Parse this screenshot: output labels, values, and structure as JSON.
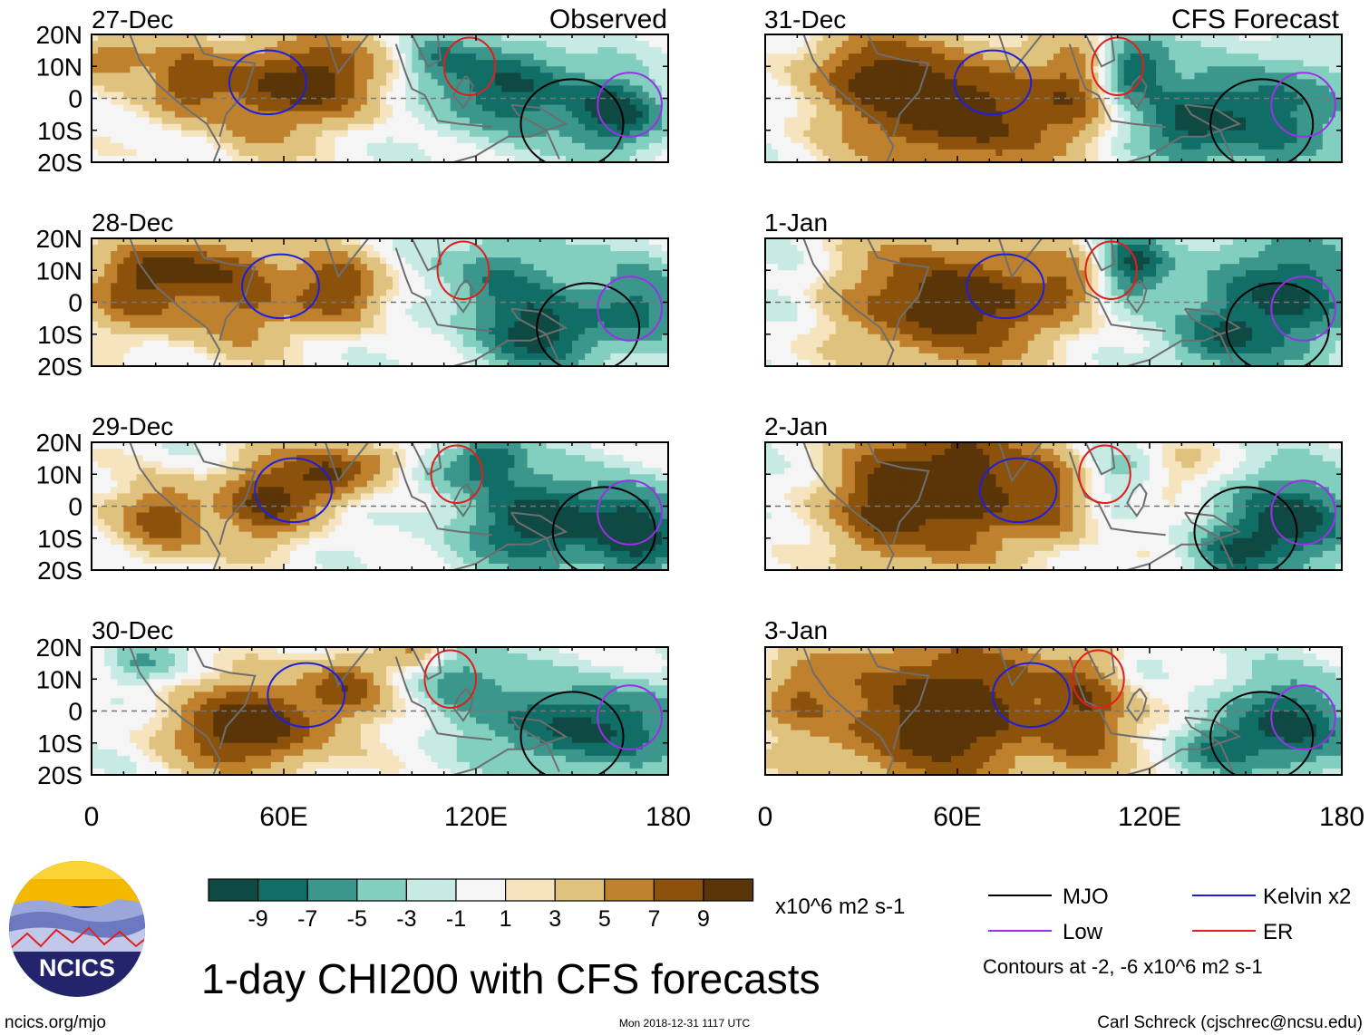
{
  "chart_data": {
    "type": "heatmap",
    "title": "1-day CHI200 with CFS forecasts",
    "columns": [
      {
        "header": "Observed",
        "dates": [
          "27-Dec",
          "28-Dec",
          "29-Dec",
          "30-Dec"
        ]
      },
      {
        "header": "CFS Forecast",
        "dates": [
          "31-Dec",
          "1-Jan",
          "2-Jan",
          "3-Jan"
        ]
      }
    ],
    "x_ticks": [
      {
        "value": 0,
        "label": "0"
      },
      {
        "value": 60,
        "label": "60E"
      },
      {
        "value": 120,
        "label": "120E"
      },
      {
        "value": 180,
        "label": "180"
      }
    ],
    "y_ticks": [
      {
        "value": 20,
        "label": "20N"
      },
      {
        "value": 10,
        "label": "10N"
      },
      {
        "value": 0,
        "label": "0"
      },
      {
        "value": -10,
        "label": "10S"
      },
      {
        "value": -20,
        "label": "20S"
      }
    ],
    "xlim": [
      0,
      180
    ],
    "ylim": [
      -20,
      20
    ],
    "colorbar": {
      "units": "x10^6 m2 s-1",
      "tick_labels": [
        "-9",
        "-7",
        "-5",
        "-3",
        "-1",
        "1",
        "3",
        "5",
        "7",
        "9"
      ],
      "colors": [
        "#0e4a43",
        "#116e66",
        "#3b968c",
        "#82cfc0",
        "#c7eae4",
        "#f5f5f5",
        "#f5e4be",
        "#dfc27d",
        "#bf812d",
        "#8c510a",
        "#5a3508"
      ]
    },
    "legend": [
      {
        "name": "MJO",
        "color": "#000000"
      },
      {
        "name": "Kelvin x2",
        "color": "#1f1fdd"
      },
      {
        "name": "Low",
        "color": "#9b30e8"
      },
      {
        "name": "ER",
        "color": "#e01e1e"
      }
    ],
    "contour_note": "Contours at -2, -6 x10^6 m2 s-1",
    "panels": [
      {
        "date": "27-Dec",
        "blobs": [
          [
            5,
            12,
            12,
            7,
            6,
            6
          ],
          [
            30,
            5,
            12,
            12,
            7,
            5
          ],
          [
            72,
            6,
            20,
            14,
            8,
            8
          ],
          [
            50,
            0,
            15,
            20,
            5,
            4
          ],
          [
            130,
            3,
            20,
            15,
            -9,
            -8
          ],
          [
            108,
            12,
            10,
            8,
            -4,
            -3
          ],
          [
            165,
            -5,
            15,
            12,
            -9,
            -5
          ]
        ]
      },
      {
        "date": "28-Dec",
        "blobs": [
          [
            15,
            4,
            16,
            14,
            7,
            7
          ],
          [
            45,
            0,
            18,
            16,
            6,
            5
          ],
          [
            78,
            4,
            14,
            12,
            8,
            7
          ],
          [
            35,
            12,
            20,
            8,
            5,
            5
          ],
          [
            128,
            8,
            18,
            14,
            -6,
            -5
          ],
          [
            140,
            -10,
            20,
            12,
            -8,
            -6
          ],
          [
            172,
            0,
            15,
            15,
            -7,
            -5
          ]
        ]
      },
      {
        "date": "29-Dec",
        "blobs": [
          [
            22,
            -4,
            14,
            12,
            8,
            6
          ],
          [
            55,
            2,
            15,
            14,
            8,
            5
          ],
          [
            75,
            10,
            12,
            10,
            7,
            6
          ],
          [
            90,
            14,
            10,
            6,
            4,
            4
          ],
          [
            112,
            12,
            10,
            8,
            -3,
            -3
          ],
          [
            125,
            15,
            10,
            8,
            -7,
            -5
          ],
          [
            140,
            -5,
            25,
            15,
            -9,
            -9
          ],
          [
            170,
            -8,
            14,
            14,
            -9,
            -5
          ]
        ]
      },
      {
        "date": "30-Dec",
        "blobs": [
          [
            50,
            -5,
            25,
            14,
            10,
            9
          ],
          [
            80,
            8,
            12,
            10,
            7,
            6
          ],
          [
            15,
            15,
            10,
            6,
            -4,
            -3
          ],
          [
            115,
            10,
            14,
            12,
            -5,
            -5
          ],
          [
            155,
            -5,
            30,
            14,
            -9,
            -10
          ],
          [
            100,
            18,
            10,
            5,
            4,
            4
          ]
        ]
      },
      {
        "date": "31-Dec",
        "blobs": [
          [
            60,
            -4,
            35,
            20,
            10,
            10
          ],
          [
            30,
            10,
            20,
            12,
            5,
            5
          ],
          [
            97,
            2,
            10,
            16,
            4,
            4
          ],
          [
            115,
            10,
            10,
            10,
            -7,
            -7
          ],
          [
            150,
            -5,
            30,
            18,
            -8,
            -9
          ],
          [
            130,
            -10,
            12,
            10,
            -4,
            -4
          ],
          [
            5,
            -5,
            8,
            10,
            0,
            0
          ]
        ]
      },
      {
        "date": "1-Jan",
        "blobs": [
          [
            58,
            0,
            32,
            20,
            10,
            10
          ],
          [
            95,
            5,
            10,
            10,
            4,
            4
          ],
          [
            115,
            12,
            10,
            10,
            -8,
            -7
          ],
          [
            160,
            2,
            28,
            20,
            -8,
            -8
          ],
          [
            140,
            -12,
            15,
            10,
            -5,
            -5
          ],
          [
            10,
            0,
            12,
            14,
            -1,
            -2
          ]
        ]
      },
      {
        "date": "2-Jan",
        "blobs": [
          [
            60,
            8,
            22,
            25,
            10,
            10
          ],
          [
            35,
            0,
            15,
            20,
            7,
            6
          ],
          [
            90,
            2,
            12,
            15,
            6,
            5
          ],
          [
            110,
            10,
            10,
            8,
            -2,
            -2
          ],
          [
            165,
            -5,
            22,
            15,
            -9,
            -8
          ],
          [
            145,
            -15,
            12,
            8,
            -5,
            -4
          ],
          [
            130,
            12,
            10,
            8,
            2,
            2
          ]
        ]
      },
      {
        "date": "3-Jan",
        "blobs": [
          [
            55,
            0,
            40,
            25,
            10,
            10
          ],
          [
            100,
            0,
            12,
            20,
            6,
            5
          ],
          [
            120,
            15,
            10,
            8,
            -2,
            -2
          ],
          [
            165,
            -5,
            20,
            15,
            -9,
            -10
          ],
          [
            140,
            -12,
            12,
            8,
            -5,
            -4
          ],
          [
            10,
            5,
            10,
            10,
            3,
            2
          ]
        ]
      }
    ]
  },
  "footer": {
    "logo_text": "NCICS",
    "url": "ncics.org/mjo",
    "timestamp": "Mon 2018-12-31 1117 UTC",
    "author": "Carl Schreck (cjschrec@ncsu.edu)"
  }
}
